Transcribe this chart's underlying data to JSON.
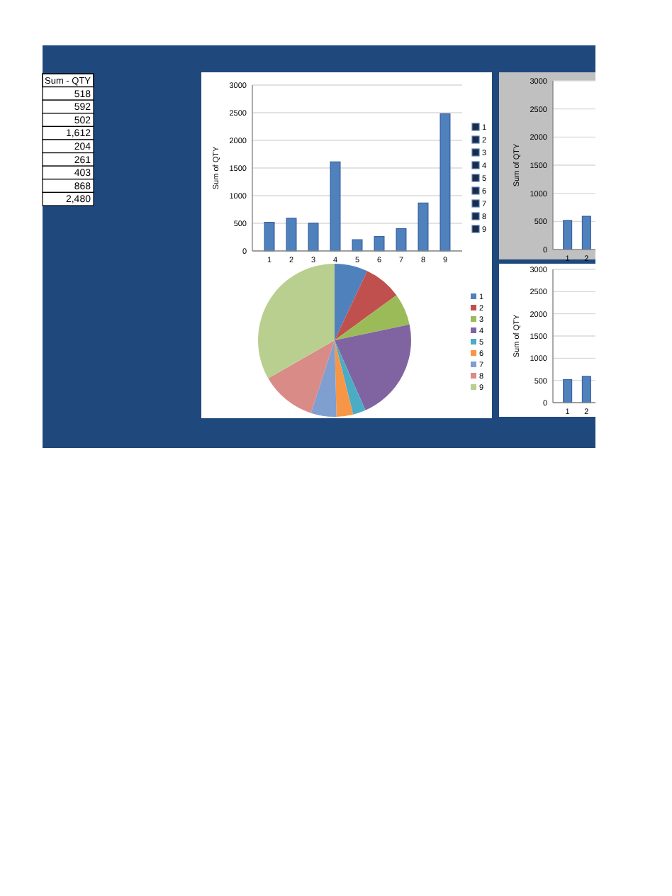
{
  "chart_data": [
    {
      "type": "other",
      "title": "Sum - QTY",
      "annotations": [
        "518",
        "592",
        "502",
        "1,612",
        "204",
        "261",
        "403",
        "868",
        "2,480"
      ]
    },
    {
      "type": "bar",
      "ylabel": "Sum of QTY",
      "categories": [
        "1",
        "2",
        "3",
        "4",
        "5",
        "6",
        "7",
        "8",
        "9"
      ],
      "values": [
        518,
        592,
        502,
        1612,
        204,
        261,
        403,
        868,
        2480
      ],
      "color": "#4f81bd",
      "ylim": [
        0,
        3000
      ],
      "yticks": [
        0,
        500,
        1000,
        1500,
        2000,
        2500,
        3000
      ],
      "grid": "y"
    },
    {
      "type": "pie",
      "categories": [
        "1",
        "2",
        "3",
        "4",
        "5",
        "6",
        "7",
        "8",
        "9"
      ],
      "values": [
        7.0,
        8.0,
        6.7,
        21.7,
        2.7,
        3.5,
        5.4,
        11.7,
        33.3
      ],
      "colors": [
        "#4f81bd",
        "#c0504d",
        "#9bbb59",
        "#8064a2",
        "#4bacc6",
        "#f79646",
        "#7f9fd0",
        "#d98b88",
        "#b9cf8f"
      ],
      "legend": "right"
    },
    {
      "type": "bar",
      "ylabel": "Sum of QTY",
      "categories": [
        "1",
        "2"
      ],
      "values": [
        518,
        592
      ],
      "color": "#4f81bd",
      "ylim": [
        0,
        3000
      ],
      "yticks": [
        0,
        500,
        1000,
        1500,
        2000,
        2500,
        3000
      ],
      "grid": "y"
    },
    {
      "type": "bar",
      "ylabel": "Sum of QTY",
      "categories": [
        "1",
        "2"
      ],
      "values": [
        518,
        592
      ],
      "color": "#4f81bd",
      "ylim": [
        0,
        3000
      ],
      "yticks": [
        0,
        500,
        1000,
        1500,
        2000,
        2500,
        3000
      ],
      "grid": "y"
    }
  ]
}
